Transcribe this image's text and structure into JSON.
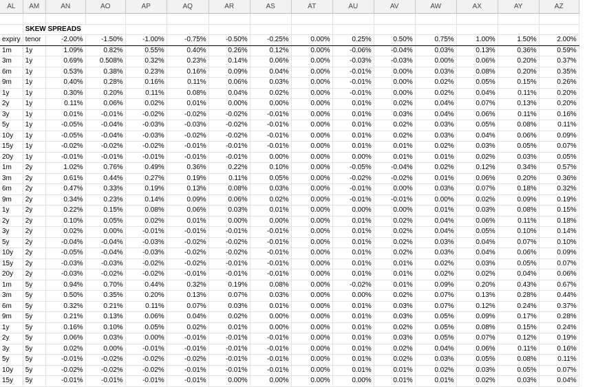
{
  "columns": [
    "AL",
    "AM",
    "AN",
    "AO",
    "AP",
    "AQ",
    "AR",
    "AS",
    "AT",
    "AU",
    "AV",
    "AW",
    "AX",
    "AY",
    "AZ"
  ],
  "title": "SKEW SPREADS",
  "header": [
    "expiry",
    "tenor",
    "-2.00%",
    "-1.50%",
    "-1.00%",
    "-0.75%",
    "-0.50%",
    "-0.25%",
    "0.00%",
    "0.25%",
    "0.50%",
    "0.75%",
    "1.00%",
    "1.50%",
    "2.00%"
  ],
  "rows": [
    [
      "1m",
      "1y",
      "1.09%",
      "0.82%",
      "0.55%",
      "0.40%",
      "0.26%",
      "0.12%",
      "0.00%",
      "-0.06%",
      "-0.04%",
      "0.03%",
      "0.13%",
      "0.36%",
      "0.59%"
    ],
    [
      "3m",
      "1y",
      "0.69%",
      "0.508%",
      "0.32%",
      "0.23%",
      "0.14%",
      "0.06%",
      "0.00%",
      "-0.03%",
      "-0.03%",
      "0.00%",
      "0.06%",
      "0.20%",
      "0.37%"
    ],
    [
      "6m",
      "1y",
      "0.53%",
      "0.38%",
      "0.23%",
      "0.16%",
      "0.09%",
      "0.04%",
      "0.00%",
      "-0.01%",
      "0.00%",
      "0.03%",
      "0.08%",
      "0.20%",
      "0.35%"
    ],
    [
      "9m",
      "1y",
      "0.40%",
      "0.28%",
      "0.16%",
      "0.11%",
      "0.06%",
      "0.03%",
      "0.00%",
      "-0.01%",
      "0.00%",
      "0.02%",
      "0.05%",
      "0.15%",
      "0.26%"
    ],
    [
      "1y",
      "1y",
      "0.30%",
      "0.20%",
      "0.11%",
      "0.08%",
      "0.04%",
      "0.02%",
      "0.00%",
      "-0.01%",
      "0.00%",
      "0.02%",
      "0.04%",
      "0.11%",
      "0.20%"
    ],
    [
      "2y",
      "1y",
      "0.11%",
      "0.06%",
      "0.02%",
      "0.01%",
      "0.00%",
      "0.00%",
      "0.00%",
      "0.01%",
      "0.02%",
      "0.04%",
      "0.07%",
      "0.13%",
      "0.20%"
    ],
    [
      "3y",
      "1y",
      "0.01%",
      "-0.01%",
      "-0.02%",
      "-0.02%",
      "-0.02%",
      "-0.01%",
      "0.00%",
      "0.01%",
      "0.03%",
      "0.04%",
      "0.06%",
      "0.11%",
      "0.16%"
    ],
    [
      "5y",
      "1y",
      "-0.05%",
      "-0.04%",
      "-0.03%",
      "-0.03%",
      "-0.02%",
      "-0.01%",
      "0.00%",
      "0.01%",
      "0.02%",
      "0.03%",
      "0.05%",
      "0.08%",
      "0.11%"
    ],
    [
      "10y",
      "1y",
      "-0.05%",
      "-0.04%",
      "-0.03%",
      "-0.02%",
      "-0.02%",
      "-0.01%",
      "0.00%",
      "0.01%",
      "0.02%",
      "0.03%",
      "0.04%",
      "0.06%",
      "0.09%"
    ],
    [
      "15y",
      "1y",
      "-0.02%",
      "-0.02%",
      "-0.02%",
      "-0.01%",
      "-0.01%",
      "-0.01%",
      "0.00%",
      "0.01%",
      "0.01%",
      "0.02%",
      "0.03%",
      "0.05%",
      "0.07%"
    ],
    [
      "20y",
      "1y",
      "-0.01%",
      "-0.01%",
      "-0.01%",
      "-0.01%",
      "-0.01%",
      "0.00%",
      "0.00%",
      "0.00%",
      "0.01%",
      "0.01%",
      "0.02%",
      "0.03%",
      "0.05%"
    ],
    [
      "1m",
      "2y",
      "1.02%",
      "0.76%",
      "0.49%",
      "0.36%",
      "0.22%",
      "0.10%",
      "0.00%",
      "-0.05%",
      "-0.04%",
      "0.02%",
      "0.12%",
      "0.34%",
      "0.57%"
    ],
    [
      "3m",
      "2y",
      "0.61%",
      "0.44%",
      "0.27%",
      "0.19%",
      "0.11%",
      "0.05%",
      "0.00%",
      "-0.02%",
      "-0.02%",
      "0.01%",
      "0.06%",
      "0.20%",
      "0.36%"
    ],
    [
      "6m",
      "2y",
      "0.47%",
      "0.33%",
      "0.19%",
      "0.13%",
      "0.08%",
      "0.03%",
      "0.00%",
      "-0.01%",
      "0.00%",
      "0.03%",
      "0.07%",
      "0.18%",
      "0.32%"
    ],
    [
      "9m",
      "2y",
      "0.34%",
      "0.23%",
      "0.14%",
      "0.09%",
      "0.06%",
      "0.02%",
      "0.00%",
      "-0.01%",
      "-0.01%",
      "0.00%",
      "0.02%",
      "0.09%",
      "0.19%"
    ],
    [
      "1y",
      "2y",
      "0.22%",
      "0.15%",
      "0.08%",
      "0.06%",
      "0.03%",
      "0.01%",
      "0.00%",
      "0.00%",
      "0.00%",
      "0.01%",
      "0.03%",
      "0.08%",
      "0.15%"
    ],
    [
      "2y",
      "2y",
      "0.10%",
      "0.05%",
      "0.02%",
      "0.01%",
      "0.00%",
      "0.00%",
      "0.00%",
      "0.01%",
      "0.02%",
      "0.04%",
      "0.06%",
      "0.11%",
      "0.18%"
    ],
    [
      "3y",
      "2y",
      "0.02%",
      "0.00%",
      "-0.01%",
      "-0.01%",
      "-0.01%",
      "-0.01%",
      "0.00%",
      "0.01%",
      "0.02%",
      "0.04%",
      "0.05%",
      "0.10%",
      "0.14%"
    ],
    [
      "5y",
      "2y",
      "-0.04%",
      "-0.04%",
      "-0.03%",
      "-0.02%",
      "-0.02%",
      "-0.01%",
      "0.00%",
      "0.01%",
      "0.02%",
      "0.03%",
      "0.04%",
      "0.07%",
      "0.10%"
    ],
    [
      "10y",
      "2y",
      "-0.05%",
      "-0.04%",
      "-0.03%",
      "-0.02%",
      "-0.02%",
      "-0.01%",
      "0.00%",
      "0.01%",
      "0.02%",
      "0.03%",
      "0.04%",
      "0.06%",
      "0.09%"
    ],
    [
      "15y",
      "2y",
      "-0.03%",
      "-0.03%",
      "-0.02%",
      "-0.02%",
      "-0.01%",
      "-0.01%",
      "0.00%",
      "0.01%",
      "0.01%",
      "0.02%",
      "0.03%",
      "0.05%",
      "0.07%"
    ],
    [
      "20y",
      "2y",
      "-0.03%",
      "-0.02%",
      "-0.02%",
      "-0.01%",
      "-0.01%",
      "-0.01%",
      "0.00%",
      "0.01%",
      "0.01%",
      "0.02%",
      "0.02%",
      "0.04%",
      "0.06%"
    ],
    [
      "1m",
      "5y",
      "0.94%",
      "0.70%",
      "0.44%",
      "0.32%",
      "0.19%",
      "0.08%",
      "0.00%",
      "-0.02%",
      "0.01%",
      "0.09%",
      "0.20%",
      "0.43%",
      "0.67%"
    ],
    [
      "3m",
      "5y",
      "0.50%",
      "0.35%",
      "0.20%",
      "0.13%",
      "0.07%",
      "0.03%",
      "0.00%",
      "0.00%",
      "0.02%",
      "0.07%",
      "0.13%",
      "0.28%",
      "0.44%"
    ],
    [
      "6m",
      "5y",
      "0.32%",
      "0.21%",
      "0.11%",
      "0.07%",
      "0.03%",
      "0.01%",
      "0.00%",
      "0.01%",
      "0.03%",
      "0.07%",
      "0.12%",
      "0.24%",
      "0.37%"
    ],
    [
      "9m",
      "5y",
      "0.21%",
      "0.13%",
      "0.06%",
      "0.04%",
      "0.02%",
      "0.00%",
      "0.00%",
      "0.01%",
      "0.03%",
      "0.05%",
      "0.09%",
      "0.17%",
      "0.28%"
    ],
    [
      "1y",
      "5y",
      "0.16%",
      "0.10%",
      "0.05%",
      "0.02%",
      "0.01%",
      "0.00%",
      "0.00%",
      "0.01%",
      "0.02%",
      "0.05%",
      "0.08%",
      "0.15%",
      "0.24%"
    ],
    [
      "2y",
      "5y",
      "0.06%",
      "0.03%",
      "0.00%",
      "-0.01%",
      "-0.01%",
      "-0.01%",
      "0.00%",
      "0.01%",
      "0.03%",
      "0.05%",
      "0.07%",
      "0.12%",
      "0.19%"
    ],
    [
      "3y",
      "5y",
      "0.02%",
      "0.00%",
      "-0.01%",
      "-0.01%",
      "-0.01%",
      "-0.01%",
      "0.00%",
      "0.01%",
      "0.02%",
      "0.04%",
      "0.06%",
      "0.11%",
      "0.16%"
    ],
    [
      "5y",
      "5y",
      "-0.01%",
      "-0.02%",
      "-0.02%",
      "-0.02%",
      "-0.01%",
      "-0.01%",
      "0.00%",
      "0.01%",
      "0.02%",
      "0.03%",
      "0.05%",
      "0.08%",
      "0.11%"
    ],
    [
      "10y",
      "5y",
      "-0.02%",
      "-0.02%",
      "-0.02%",
      "-0.01%",
      "-0.01%",
      "-0.01%",
      "0.00%",
      "0.01%",
      "0.01%",
      "0.02%",
      "0.03%",
      "0.05%",
      "0.07%"
    ],
    [
      "15y",
      "5y",
      "-0.01%",
      "-0.01%",
      "-0.01%",
      "-0.01%",
      "0.00%",
      "0.00%",
      "0.00%",
      "0.00%",
      "0.01%",
      "0.01%",
      "0.02%",
      "0.03%",
      "0.04%"
    ]
  ]
}
